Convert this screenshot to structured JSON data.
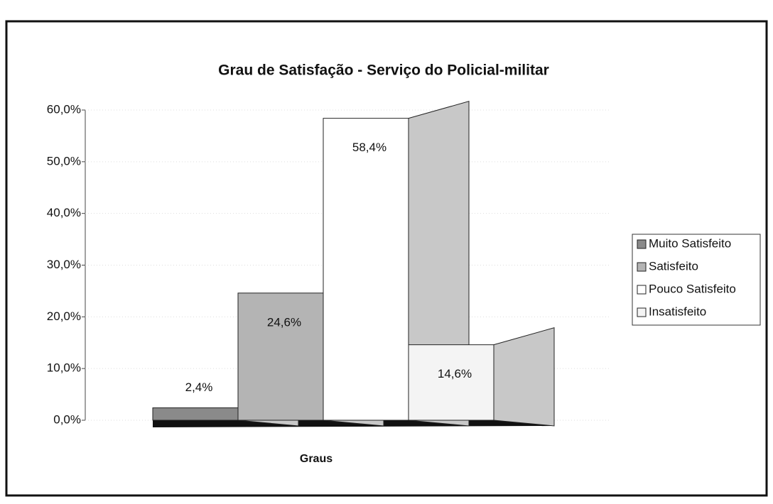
{
  "chart_data": {
    "type": "bar3d",
    "title": "Grau de Satisfação - Serviço do Policial-militar",
    "xlabel": "Graus",
    "series": [
      {
        "name": "Muito Satisfeito",
        "color": "#8a8a8a",
        "values": [
          2.4
        ],
        "value_labels": [
          "2,4%"
        ]
      },
      {
        "name": "Satisfeito",
        "color": "#b4b4b4",
        "values": [
          24.6
        ],
        "value_labels": [
          "24,6%"
        ]
      },
      {
        "name": "Pouco Satisfeito",
        "color": "#ffffff",
        "values": [
          58.4
        ],
        "value_labels": [
          "58,4%"
        ]
      },
      {
        "name": "Insatisfeito",
        "color": "#f4f4f4",
        "values": [
          14.6
        ],
        "value_labels": [
          "14,6%"
        ]
      }
    ],
    "ylim": [
      0,
      60
    ],
    "yticks": [
      {
        "value": 0,
        "label": "0,0%"
      },
      {
        "value": 10,
        "label": "10,0%"
      },
      {
        "value": 20,
        "label": "20,0%"
      },
      {
        "value": 30,
        "label": "30,0%"
      },
      {
        "value": 40,
        "label": "40,0%"
      },
      {
        "value": 50,
        "label": "50,0%"
      },
      {
        "value": 60,
        "label": "60,0%"
      }
    ],
    "grid": true,
    "legend": "right"
  }
}
